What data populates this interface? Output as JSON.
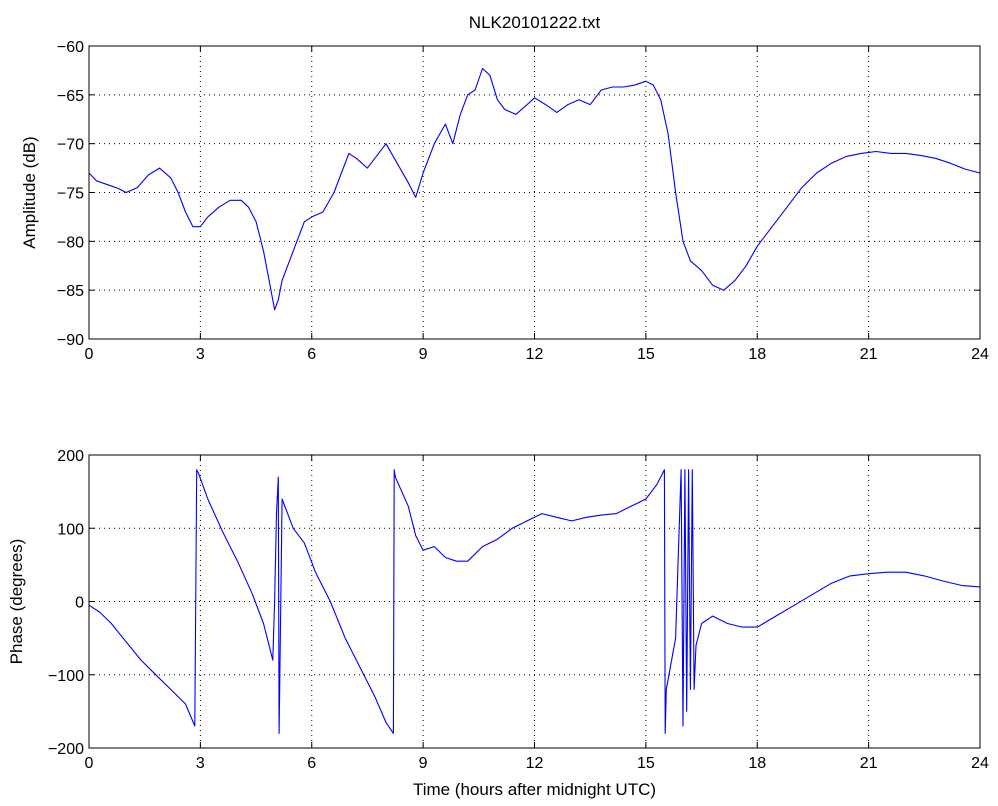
{
  "chart_data": [
    {
      "type": "line",
      "title": "NLK20101222.txt",
      "xlabel": "",
      "ylabel": "Amplitude (dB)",
      "xlim": [
        0,
        24
      ],
      "ylim": [
        -90,
        -60
      ],
      "xticks": [
        0,
        3,
        6,
        9,
        12,
        15,
        18,
        21,
        24
      ],
      "yticks": [
        -90,
        -85,
        -80,
        -75,
        -70,
        -65,
        -60
      ],
      "grid": true,
      "color": "#0000ff",
      "series": [
        {
          "x": [
            0,
            0.2,
            0.5,
            0.8,
            1.0,
            1.3,
            1.6,
            1.9,
            2.2,
            2.4,
            2.6,
            2.8,
            3.0,
            3.2,
            3.5,
            3.8,
            4.1,
            4.3,
            4.5,
            4.7,
            4.85,
            5.0,
            5.1,
            5.2,
            5.4,
            5.6,
            5.8,
            6.0,
            6.3,
            6.6,
            6.8,
            7.0,
            7.2,
            7.5,
            7.8,
            8.0,
            8.3,
            8.6,
            8.8,
            9.0,
            9.3,
            9.6,
            9.8,
            10.0,
            10.2,
            10.4,
            10.6,
            10.8,
            11.0,
            11.2,
            11.5,
            11.8,
            12.0,
            12.3,
            12.6,
            12.9,
            13.2,
            13.5,
            13.8,
            14.1,
            14.4,
            14.7,
            15.0,
            15.2,
            15.4,
            15.6,
            15.8,
            16.0,
            16.2,
            16.5,
            16.8,
            17.1,
            17.4,
            17.7,
            18.0,
            18.4,
            18.8,
            19.2,
            19.6,
            20.0,
            20.4,
            20.8,
            21.2,
            21.6,
            22.0,
            22.4,
            22.8,
            23.2,
            23.6,
            24.0
          ],
          "y": [
            -73,
            -73.8,
            -74.2,
            -74.6,
            -75,
            -74.5,
            -73.2,
            -72.5,
            -73.5,
            -75,
            -77,
            -78.5,
            -78.5,
            -77.5,
            -76.5,
            -75.8,
            -75.8,
            -76.5,
            -78,
            -81,
            -84,
            -87,
            -86,
            -84,
            -82,
            -80,
            -78,
            -77.5,
            -77,
            -75,
            -73,
            -71,
            -71.5,
            -72.5,
            -71,
            -70,
            -72,
            -74,
            -75.5,
            -73,
            -70,
            -68,
            -70,
            -67,
            -65,
            -64.5,
            -62.3,
            -63,
            -65.5,
            -66.5,
            -67,
            -66,
            -65.3,
            -66,
            -66.8,
            -66,
            -65.5,
            -66,
            -64.5,
            -64.2,
            -64.2,
            -64,
            -63.6,
            -64,
            -65.5,
            -69,
            -75,
            -80,
            -82,
            -83,
            -84.5,
            -85,
            -84,
            -82.5,
            -80.5,
            -78.5,
            -76.5,
            -74.5,
            -73,
            -72,
            -71.3,
            -71,
            -70.8,
            -71,
            -71,
            -71.2,
            -71.5,
            -72,
            -72.6,
            -73
          ]
        }
      ]
    },
    {
      "type": "line",
      "title": "",
      "xlabel": "Time (hours after midnight UTC)",
      "ylabel": "Phase (degrees)",
      "xlim": [
        0,
        24
      ],
      "ylim": [
        -200,
        200
      ],
      "xticks": [
        0,
        3,
        6,
        9,
        12,
        15,
        18,
        21,
        24
      ],
      "yticks": [
        -200,
        -100,
        0,
        100,
        200
      ],
      "grid": true,
      "color": "#0000ff",
      "series": [
        {
          "x": [
            0,
            0.3,
            0.6,
            1.0,
            1.4,
            1.8,
            2.2,
            2.6,
            2.85,
            2.9,
            2.95,
            3.2,
            3.6,
            4.0,
            4.4,
            4.7,
            4.95,
            5.0,
            5.05,
            5.1,
            5.12,
            5.2,
            5.5,
            5.8,
            6.1,
            6.5,
            6.9,
            7.3,
            7.7,
            8.0,
            8.2,
            8.22,
            8.25,
            8.6,
            8.8,
            9.0,
            9.3,
            9.6,
            9.9,
            10.2,
            10.6,
            11.0,
            11.4,
            11.8,
            12.2,
            12.6,
            13.0,
            13.4,
            13.8,
            14.2,
            14.6,
            15.0,
            15.3,
            15.5,
            15.52,
            15.55,
            15.8,
            15.95,
            16.0,
            16.05,
            16.1,
            16.15,
            16.2,
            16.25,
            16.3,
            16.35,
            16.5,
            16.8,
            17.2,
            17.6,
            18.0,
            18.5,
            19.0,
            19.5,
            20.0,
            20.5,
            21.0,
            21.5,
            22.0,
            22.5,
            23.0,
            23.5,
            24.0
          ],
          "y": [
            -5,
            -15,
            -30,
            -55,
            -80,
            -100,
            -120,
            -140,
            -170,
            180,
            175,
            140,
            95,
            55,
            10,
            -30,
            -80,
            0,
            120,
            170,
            -180,
            140,
            100,
            80,
            40,
            0,
            -50,
            -90,
            -130,
            -165,
            -180,
            180,
            170,
            130,
            90,
            70,
            75,
            60,
            55,
            55,
            75,
            85,
            100,
            110,
            120,
            115,
            110,
            115,
            118,
            120,
            130,
            140,
            160,
            180,
            -180,
            -120,
            -50,
            180,
            -170,
            180,
            -150,
            180,
            -120,
            180,
            -120,
            -60,
            -30,
            -20,
            -30,
            -35,
            -35,
            -20,
            -5,
            10,
            25,
            35,
            38,
            40,
            40,
            35,
            28,
            22,
            20
          ]
        }
      ]
    }
  ]
}
